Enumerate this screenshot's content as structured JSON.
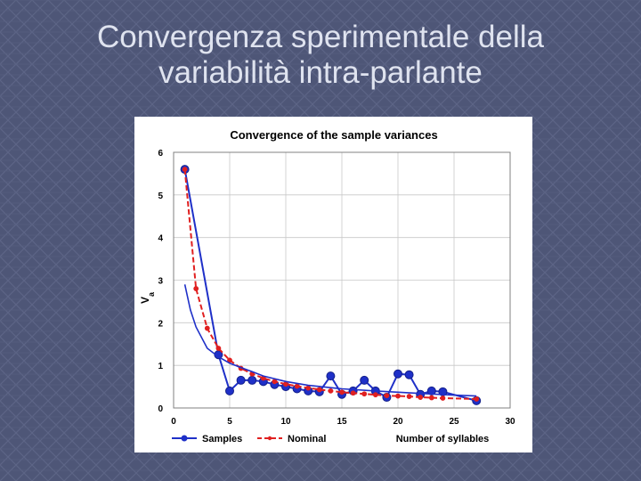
{
  "slide": {
    "title_line1": "Convergenza sperimentale della",
    "title_line2": "variabilità intra-parlante"
  },
  "chart_data": {
    "type": "line",
    "title": "Convergence of the sample variances",
    "xlabel": "Number of syllables",
    "ylabel": "V",
    "ylabel_subscript": "a",
    "xlim": [
      0,
      30
    ],
    "ylim": [
      0,
      6
    ],
    "x_ticks": [
      "0",
      "5",
      "10",
      "15",
      "20",
      "25",
      "30"
    ],
    "y_ticks": [
      "0",
      "1",
      "2",
      "3",
      "4",
      "5",
      "6"
    ],
    "grid": true,
    "legend_position": "bottom-left",
    "series": [
      {
        "name": "Samples",
        "color": "#1f30c8",
        "marker": "circle",
        "x": [
          1,
          4,
          5,
          6,
          7,
          8,
          9,
          10,
          11,
          12,
          13,
          14,
          15,
          16,
          17,
          18,
          19,
          20,
          21,
          22,
          23,
          24,
          27
        ],
        "y": [
          5.6,
          1.25,
          0.4,
          0.65,
          0.65,
          0.62,
          0.55,
          0.5,
          0.45,
          0.4,
          0.38,
          0.75,
          0.32,
          0.4,
          0.65,
          0.4,
          0.25,
          0.8,
          0.78,
          0.32,
          0.4,
          0.38,
          0.17
        ]
      },
      {
        "name": "Nominal",
        "color": "#e02020",
        "marker": "small-circle",
        "x": [
          1,
          2,
          3,
          4,
          5,
          6,
          7,
          8,
          9,
          10,
          11,
          12,
          13,
          14,
          15,
          16,
          17,
          18,
          19,
          20,
          21,
          22,
          23,
          24,
          27
        ],
        "y": [
          5.6,
          2.8,
          1.87,
          1.4,
          1.12,
          0.93,
          0.8,
          0.7,
          0.62,
          0.56,
          0.51,
          0.47,
          0.43,
          0.4,
          0.37,
          0.35,
          0.33,
          0.31,
          0.29,
          0.28,
          0.27,
          0.25,
          0.24,
          0.23,
          0.21
        ]
      },
      {
        "name": "",
        "color": "#1f30c8",
        "marker": "none",
        "x": [
          1,
          1.5,
          2,
          3,
          4,
          5,
          6,
          7,
          8,
          10,
          12,
          15,
          18,
          20,
          22,
          25,
          27
        ],
        "y": [
          2.9,
          2.3,
          1.9,
          1.4,
          1.2,
          1.05,
          0.95,
          0.85,
          0.75,
          0.62,
          0.53,
          0.45,
          0.4,
          0.37,
          0.34,
          0.3,
          0.28
        ]
      }
    ]
  }
}
